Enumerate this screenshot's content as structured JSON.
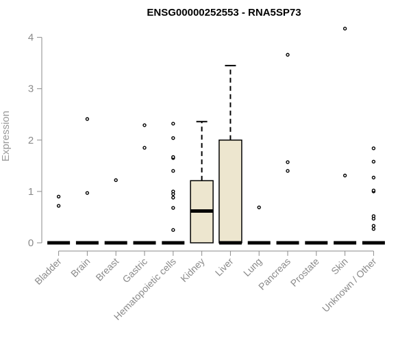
{
  "chart_data": {
    "type": "box",
    "title": "ENSG00000252553 - RNA5SP73",
    "xlabel": "",
    "ylabel": "Expression",
    "ylim": [
      0,
      4.2
    ],
    "yticks": [
      0,
      1,
      2,
      3,
      4
    ],
    "grid": false,
    "legend": "none",
    "colors": {
      "box_fill": "#ede6cf",
      "stroke": "#000000",
      "axis": "#8a8a8a"
    },
    "categories": [
      "Bladder",
      "Brain",
      "Breast",
      "Gastric",
      "Hematopoietic cells",
      "Kidney",
      "Liver",
      "Lung",
      "Pancreas",
      "Prostate",
      "Skin",
      "Unknown / Other"
    ],
    "boxes": [
      {
        "category": "Bladder",
        "q1": 0,
        "median": 0,
        "q3": 0,
        "whisker_low": 0,
        "whisker_high": 0,
        "outliers": [
          0.72,
          0.9
        ]
      },
      {
        "category": "Brain",
        "q1": 0,
        "median": 0,
        "q3": 0,
        "whisker_low": 0,
        "whisker_high": 0,
        "outliers": [
          0.97,
          2.41
        ]
      },
      {
        "category": "Breast",
        "q1": 0,
        "median": 0,
        "q3": 0,
        "whisker_low": 0,
        "whisker_high": 0,
        "outliers": [
          1.22
        ]
      },
      {
        "category": "Gastric",
        "q1": 0,
        "median": 0,
        "q3": 0,
        "whisker_low": 0,
        "whisker_high": 0,
        "outliers": [
          1.85,
          2.29
        ]
      },
      {
        "category": "Hematopoietic cells",
        "q1": 0,
        "median": 0,
        "q3": 0,
        "whisker_low": 0,
        "whisker_high": 0,
        "outliers": [
          0.25,
          0.68,
          0.88,
          0.95,
          1.0,
          1.4,
          1.65,
          1.67,
          2.04,
          2.32
        ]
      },
      {
        "category": "Kidney",
        "q1": 0,
        "median": 0.62,
        "q3": 1.21,
        "whisker_low": 0,
        "whisker_high": 2.36,
        "outliers": []
      },
      {
        "category": "Liver",
        "q1": 0,
        "median": 0,
        "q3": 2.0,
        "whisker_low": 0,
        "whisker_high": 3.45,
        "outliers": []
      },
      {
        "category": "Lung",
        "q1": 0,
        "median": 0,
        "q3": 0,
        "whisker_low": 0,
        "whisker_high": 0,
        "outliers": [
          0.69
        ]
      },
      {
        "category": "Pancreas",
        "q1": 0,
        "median": 0,
        "q3": 0,
        "whisker_low": 0,
        "whisker_high": 0,
        "outliers": [
          1.4,
          1.57,
          3.66
        ]
      },
      {
        "category": "Prostate",
        "q1": 0,
        "median": 0,
        "q3": 0,
        "whisker_low": 0,
        "whisker_high": 0,
        "outliers": []
      },
      {
        "category": "Skin",
        "q1": 0,
        "median": 0,
        "q3": 0,
        "whisker_low": 0,
        "whisker_high": 0,
        "outliers": [
          1.31,
          4.17
        ]
      },
      {
        "category": "Unknown / Other",
        "q1": 0,
        "median": 0,
        "q3": 0,
        "whisker_low": 0,
        "whisker_high": 0,
        "outliers": [
          0.27,
          0.33,
          0.47,
          0.52,
          1.0,
          1.02,
          1.27,
          1.58,
          1.84
        ]
      }
    ]
  }
}
